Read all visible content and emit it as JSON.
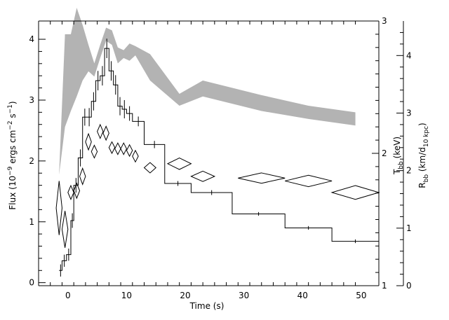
{
  "chart_data": {
    "type": "line",
    "xlabel": "Time (s)",
    "ylabel_left": "Flux (10⁻⁹ ergs cm⁻² s⁻¹)",
    "ylabel_right_inner": "T_bb (keV)",
    "ylabel_right_outer": "R_bb (km/d_10 kpc)",
    "xlim": [
      -5,
      53
    ],
    "ylim_left": [
      -0.05,
      4.3
    ],
    "ylim_right_inner": [
      1,
      3
    ],
    "ylim_right_outer": [
      0,
      4.6
    ],
    "x_ticks": [
      0,
      10,
      20,
      30,
      40,
      50
    ],
    "y_ticks_left": [
      0,
      1,
      2,
      3,
      4
    ],
    "y_ticks_right_inner": [
      1,
      2,
      3
    ],
    "y_ticks_right_outer": [
      0,
      1,
      2,
      3,
      4
    ],
    "grid": false,
    "series": [
      {
        "style": "histogram",
        "color": "#000000",
        "bins": [
          {
            "x0": -1.5,
            "x1": -1.0,
            "y": 0.2,
            "err": 0.1
          },
          {
            "x0": -1.0,
            "x1": -0.25,
            "y": 0.36,
            "err": 0.1
          },
          {
            "x0": -0.25,
            "x1": 0.5,
            "y": 0.46,
            "err": 0.1
          },
          {
            "x0": 0.5,
            "x1": 1.0,
            "y": 1.02,
            "err": 0.12
          },
          {
            "x0": 1.0,
            "x1": 1.75,
            "y": 1.6,
            "err": 0.12
          },
          {
            "x0": 1.75,
            "x1": 2.5,
            "y": 2.05,
            "err": 0.14
          },
          {
            "x0": 2.5,
            "x1": 3.25,
            "y": 2.72,
            "err": 0.14
          },
          {
            "x0": 3.25,
            "x1": 4.0,
            "y": 2.72,
            "err": 0.15
          },
          {
            "x0": 4.0,
            "x1": 4.75,
            "y": 2.98,
            "err": 0.15
          },
          {
            "x0": 4.75,
            "x1": 5.5,
            "y": 3.32,
            "err": 0.16
          },
          {
            "x0": 5.5,
            "x1": 6.25,
            "y": 3.4,
            "err": 0.16
          },
          {
            "x0": 6.25,
            "x1": 7.0,
            "y": 3.85,
            "err": 0.16
          },
          {
            "x0": 7.0,
            "x1": 7.75,
            "y": 3.48,
            "err": 0.16
          },
          {
            "x0": 7.75,
            "x1": 8.5,
            "y": 3.25,
            "err": 0.16
          },
          {
            "x0": 8.5,
            "x1": 9.25,
            "y": 2.9,
            "err": 0.15
          },
          {
            "x0": 9.25,
            "x1": 10.0,
            "y": 2.85,
            "err": 0.15
          },
          {
            "x0": 10.0,
            "x1": 11.0,
            "y": 2.78,
            "err": 0.12
          },
          {
            "x0": 11.0,
            "x1": 13.0,
            "y": 2.65,
            "err": 0.08
          },
          {
            "x0": 13.0,
            "x1": 16.5,
            "y": 2.27,
            "err": 0.06
          },
          {
            "x0": 16.5,
            "x1": 21.0,
            "y": 1.63,
            "err": 0.04
          },
          {
            "x0": 21.0,
            "x1": 28.0,
            "y": 1.48,
            "err": 0.04
          },
          {
            "x0": 28.0,
            "x1": 37.0,
            "y": 1.13,
            "err": 0.03
          },
          {
            "x0": 37.0,
            "x1": 45.0,
            "y": 0.9,
            "err": 0.03
          },
          {
            "x0": 45.0,
            "x1": 53.0,
            "y": 0.68,
            "err": 0.03
          }
        ]
      },
      {
        "style": "band",
        "axis": "right_inner",
        "color": "#b3b3b3",
        "x": [
          -1.5,
          -0.5,
          0.5,
          1.5,
          2.5,
          3.5,
          4.5,
          5.5,
          6.5,
          7.5,
          8.5,
          9.5,
          10.5,
          11.5,
          14.0,
          19.0,
          23.0,
          33.0,
          41.0,
          49.0
        ],
        "lower": [
          1.84,
          2.2,
          2.32,
          2.43,
          2.55,
          2.62,
          2.58,
          2.72,
          2.85,
          2.82,
          2.68,
          2.72,
          2.7,
          2.74,
          2.55,
          2.36,
          2.43,
          2.32,
          2.26,
          2.21
        ],
        "upper": [
          1.85,
          2.9,
          2.9,
          3.1,
          2.97,
          2.82,
          2.68,
          2.82,
          2.95,
          2.93,
          2.8,
          2.78,
          2.83,
          2.81,
          2.75,
          2.45,
          2.55,
          2.44,
          2.36,
          2.31
        ]
      },
      {
        "style": "diamonds",
        "axis": "right_outer",
        "color": "#000000",
        "x": [
          -1.5,
          -0.5,
          0.5,
          1.5,
          2.5,
          3.5,
          4.5,
          5.5,
          6.5,
          7.5,
          8.5,
          9.5,
          10.5,
          11.5,
          14.0,
          19.0,
          23.0,
          33.0,
          41.0,
          49.0
        ],
        "y": [
          1.35,
          0.98,
          1.62,
          1.65,
          1.9,
          2.5,
          2.33,
          2.68,
          2.65,
          2.4,
          2.38,
          2.38,
          2.35,
          2.25,
          2.05,
          2.12,
          1.9,
          1.87,
          1.82,
          1.62
        ],
        "yerr": [
          0.47,
          0.32,
          0.12,
          0.13,
          0.14,
          0.14,
          0.11,
          0.12,
          0.12,
          0.1,
          0.1,
          0.1,
          0.1,
          0.1,
          0.09,
          0.1,
          0.09,
          0.09,
          0.1,
          0.12
        ],
        "xerr": [
          0.5,
          0.5,
          0.5,
          0.5,
          0.5,
          0.5,
          0.5,
          0.5,
          0.5,
          0.5,
          0.5,
          0.5,
          0.5,
          0.5,
          1.0,
          2.0,
          2.0,
          4.0,
          4.0,
          4.0
        ]
      }
    ]
  }
}
